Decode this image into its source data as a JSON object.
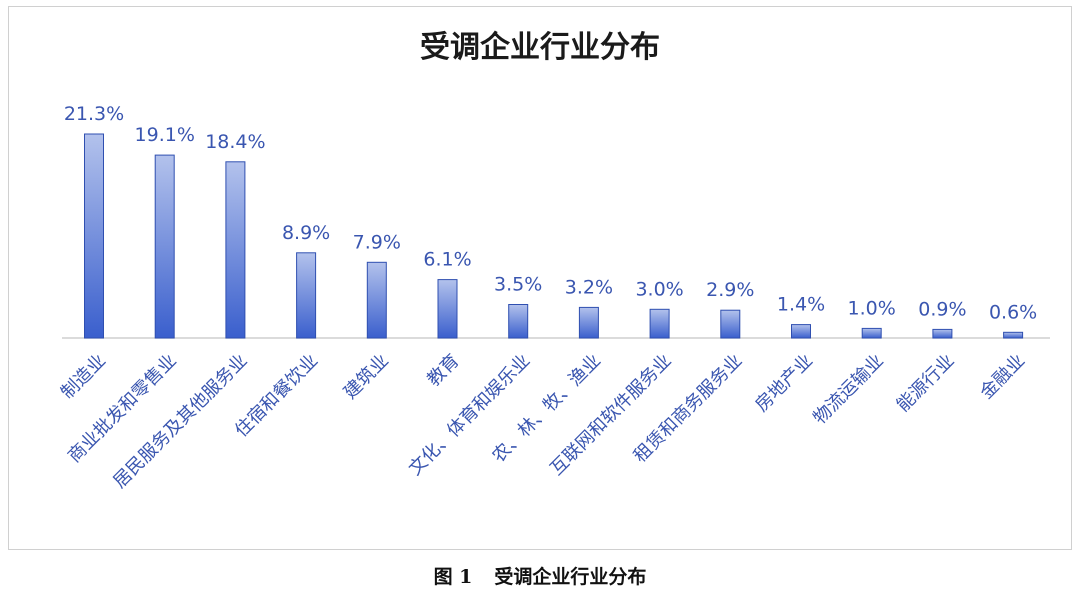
{
  "chart_data": {
    "type": "bar",
    "title": "受调企业行业分布",
    "categories": [
      "制造业",
      "商业批发和零售业",
      "居民服务及其他服务业",
      "住宿和餐饮业",
      "建筑业",
      "教育",
      "文化、体育和娱乐业",
      "农、林、牧、渔业",
      "互联网和软件服务业",
      "租赁和商务服务业",
      "房地产业",
      "物流运输业",
      "能源行业",
      "金融业"
    ],
    "values": [
      21.3,
      19.1,
      18.4,
      8.9,
      7.9,
      6.1,
      3.5,
      3.2,
      3.0,
      2.9,
      1.4,
      1.0,
      0.9,
      0.6
    ],
    "value_labels": [
      "21.3%",
      "19.1%",
      "18.4%",
      "8.9%",
      "7.9%",
      "6.1%",
      "3.5%",
      "3.2%",
      "3.0%",
      "2.9%",
      "1.4%",
      "1.0%",
      "0.9%",
      "0.6%"
    ],
    "ylim": [
      0,
      21.3
    ],
    "grid": false,
    "colors": {
      "bar_top": "#b3c2ec",
      "bar_bottom": "#3a5fcd",
      "bar_stroke": "#2f4fb0",
      "label": "#3a56b0"
    }
  },
  "caption": {
    "figure_number": "图 1",
    "text": "受调企业行业分布"
  }
}
